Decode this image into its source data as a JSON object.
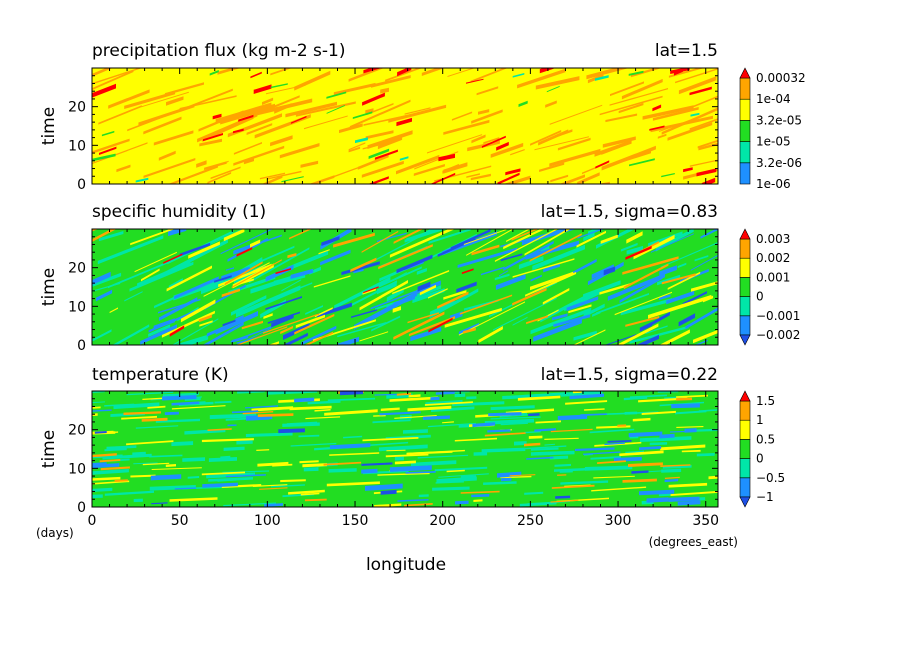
{
  "colors": {
    "blue": "#1e90ff",
    "cyan": "#00e6a8",
    "green": "#22dd22",
    "yellow": "#ffff00",
    "orange": "#ffa500",
    "red": "#ff0000"
  },
  "x_axis": {
    "label": "longitude",
    "unit": "(degrees_east)",
    "ticks": [
      "0",
      "50",
      "100",
      "150",
      "200",
      "250",
      "300",
      "350"
    ]
  },
  "y_axis": {
    "label": "time",
    "unit": "(days)",
    "ticks": [
      "0",
      "10",
      "20"
    ]
  },
  "chart_data": [
    {
      "type": "heatmap",
      "title": "precipitation flux (kg m-2 s-1)",
      "subtitle": "lat=1.5",
      "xlabel": "longitude",
      "ylabel": "time",
      "xlim": [
        0,
        357
      ],
      "ylim": [
        0,
        30
      ],
      "colorbar": [
        "0.00032",
        "1e-04",
        "3.2e-05",
        "1e-05",
        "3.2e-06",
        "1e-06"
      ],
      "colorbar_colors": [
        "#1e90ff",
        "#00e6a8",
        "#22dd22",
        "#ffff00",
        "#ffa500",
        "#ff0000"
      ],
      "dominant_levels": [
        "3.2e-05 to 1e-04",
        "1e-04 to 0.00032"
      ]
    },
    {
      "type": "heatmap",
      "title": "specific humidity (1)",
      "subtitle": "lat=1.5, sigma=0.83",
      "xlabel": "longitude",
      "ylabel": "time",
      "xlim": [
        0,
        357
      ],
      "ylim": [
        0,
        30
      ],
      "colorbar": [
        "0.003",
        "0.002",
        "0.001",
        "0",
        "−0.001",
        "−0.002"
      ],
      "colorbar_colors": [
        "#1e50e6",
        "#1e90ff",
        "#00e6a8",
        "#22dd22",
        "#ffff00",
        "#ffa500",
        "#ff0000"
      ],
      "dominant_levels": [
        "-0.001 to 0.001"
      ]
    },
    {
      "type": "heatmap",
      "title": "temperature (K)",
      "subtitle": "lat=1.5, sigma=0.22",
      "xlabel": "longitude",
      "ylabel": "time",
      "xlim": [
        0,
        357
      ],
      "ylim": [
        0,
        30
      ],
      "colorbar": [
        "1.5",
        "1",
        "0.5",
        "0",
        "−0.5",
        "−1"
      ],
      "colorbar_colors": [
        "#1e50e6",
        "#1e90ff",
        "#00e6a8",
        "#22dd22",
        "#ffff00",
        "#ffa500",
        "#ff0000"
      ],
      "dominant_levels": [
        "-0.5 to 0.5"
      ]
    }
  ]
}
